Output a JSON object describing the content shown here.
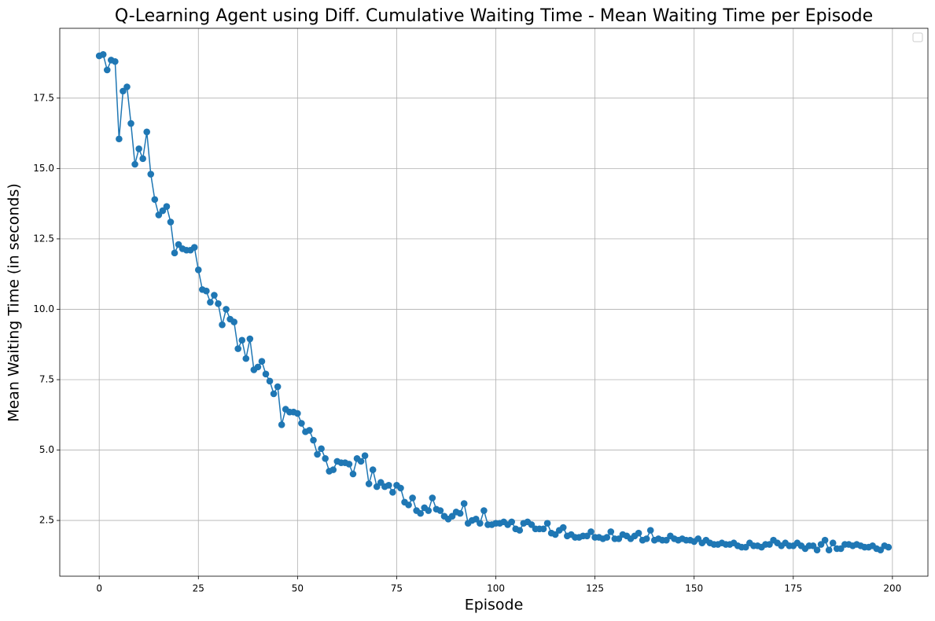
{
  "chart_data": {
    "type": "line",
    "title": "Q-Learning Agent using Diff. Cumulative Waiting Time - Mean Waiting Time per Episode",
    "x_label": "Episode",
    "y_label": "Mean Waiting Time (in seconds)",
    "color": "#1f77b4",
    "grid": true,
    "markers": true,
    "xlim": [
      -9.95,
      208.95
    ],
    "ylim": [
      0.52,
      19.98
    ],
    "xticks": [
      0,
      25,
      50,
      75,
      100,
      125,
      150,
      175,
      200
    ],
    "yticks": [
      2.5,
      {
        "value": 5,
        "label": "5.0"
      },
      7.5,
      {
        "value": 10,
        "label": "10.0"
      },
      12.5,
      {
        "value": 15,
        "label": "15.0"
      },
      17.5
    ],
    "x": [
      0,
      1,
      2,
      3,
      4,
      5,
      6,
      7,
      8,
      9,
      10,
      11,
      12,
      13,
      14,
      15,
      16,
      17,
      18,
      19,
      20,
      21,
      22,
      23,
      24,
      25,
      26,
      27,
      28,
      29,
      30,
      31,
      32,
      33,
      34,
      35,
      36,
      37,
      38,
      39,
      40,
      41,
      42,
      43,
      44,
      45,
      46,
      47,
      48,
      49,
      50,
      51,
      52,
      53,
      54,
      55,
      56,
      57,
      58,
      59,
      60,
      61,
      62,
      63,
      64,
      65,
      66,
      67,
      68,
      69,
      70,
      71,
      72,
      73,
      74,
      75,
      76,
      77,
      78,
      79,
      80,
      81,
      82,
      83,
      84,
      85,
      86,
      87,
      88,
      89,
      90,
      91,
      92,
      93,
      94,
      95,
      96,
      97,
      98,
      99,
      100,
      101,
      102,
      103,
      104,
      105,
      106,
      107,
      108,
      109,
      110,
      111,
      112,
      113,
      114,
      115,
      116,
      117,
      118,
      119,
      120,
      121,
      122,
      123,
      124,
      125,
      126,
      127,
      128,
      129,
      130,
      131,
      132,
      133,
      134,
      135,
      136,
      137,
      138,
      139,
      140,
      141,
      142,
      143,
      144,
      145,
      146,
      147,
      148,
      149,
      150,
      151,
      152,
      153,
      154,
      155,
      156,
      157,
      158,
      159,
      160,
      161,
      162,
      163,
      164,
      165,
      166,
      167,
      168,
      169,
      170,
      171,
      172,
      173,
      174,
      175,
      176,
      177,
      178,
      179,
      180,
      181,
      182,
      183,
      184,
      185,
      186,
      187,
      188,
      189,
      190,
      191,
      192,
      193,
      194,
      195,
      196,
      197,
      198,
      199
    ],
    "values": [
      19.0,
      19.05,
      18.5,
      18.85,
      18.8,
      16.05,
      17.75,
      17.9,
      16.6,
      15.15,
      15.7,
      15.35,
      16.3,
      14.8,
      13.9,
      13.35,
      13.5,
      13.65,
      13.1,
      12.0,
      12.3,
      12.15,
      12.1,
      12.1,
      12.2,
      11.4,
      10.7,
      10.65,
      10.25,
      10.5,
      10.2,
      9.45,
      10.0,
      9.65,
      9.55,
      8.6,
      8.9,
      8.25,
      8.95,
      7.85,
      7.95,
      8.15,
      7.7,
      7.45,
      7.0,
      7.25,
      5.9,
      6.45,
      6.35,
      6.35,
      6.3,
      5.95,
      5.65,
      5.7,
      5.35,
      4.85,
      5.05,
      4.7,
      4.25,
      4.3,
      4.6,
      4.55,
      4.55,
      4.5,
      4.15,
      4.7,
      4.6,
      4.8,
      3.8,
      4.3,
      3.7,
      3.85,
      3.7,
      3.75,
      3.5,
      3.75,
      3.65,
      3.15,
      3.05,
      3.3,
      2.85,
      2.75,
      2.95,
      2.85,
      3.3,
      2.9,
      2.85,
      2.65,
      2.55,
      2.65,
      2.8,
      2.75,
      3.1,
      2.4,
      2.5,
      2.55,
      2.4,
      2.85,
      2.35,
      2.35,
      2.4,
      2.4,
      2.45,
      2.35,
      2.45,
      2.2,
      2.15,
      2.4,
      2.45,
      2.35,
      2.2,
      2.2,
      2.2,
      2.4,
      2.05,
      2.0,
      2.15,
      2.25,
      1.95,
      2.0,
      1.9,
      1.9,
      1.95,
      1.95,
      2.1,
      1.9,
      1.9,
      1.85,
      1.9,
      2.1,
      1.85,
      1.85,
      2.0,
      1.95,
      1.85,
      1.95,
      2.05,
      1.8,
      1.85,
      2.15,
      1.8,
      1.85,
      1.8,
      1.8,
      1.95,
      1.85,
      1.8,
      1.85,
      1.8,
      1.8,
      1.75,
      1.85,
      1.7,
      1.8,
      1.7,
      1.65,
      1.65,
      1.7,
      1.65,
      1.65,
      1.7,
      1.6,
      1.55,
      1.55,
      1.7,
      1.6,
      1.6,
      1.55,
      1.65,
      1.65,
      1.8,
      1.7,
      1.6,
      1.7,
      1.6,
      1.6,
      1.7,
      1.6,
      1.5,
      1.6,
      1.6,
      1.45,
      1.65,
      1.8,
      1.45,
      1.7,
      1.5,
      1.5,
      1.65,
      1.65,
      1.6,
      1.65,
      1.6,
      1.55,
      1.55,
      1.6,
      1.5,
      1.45,
      1.6,
      1.55
    ]
  }
}
